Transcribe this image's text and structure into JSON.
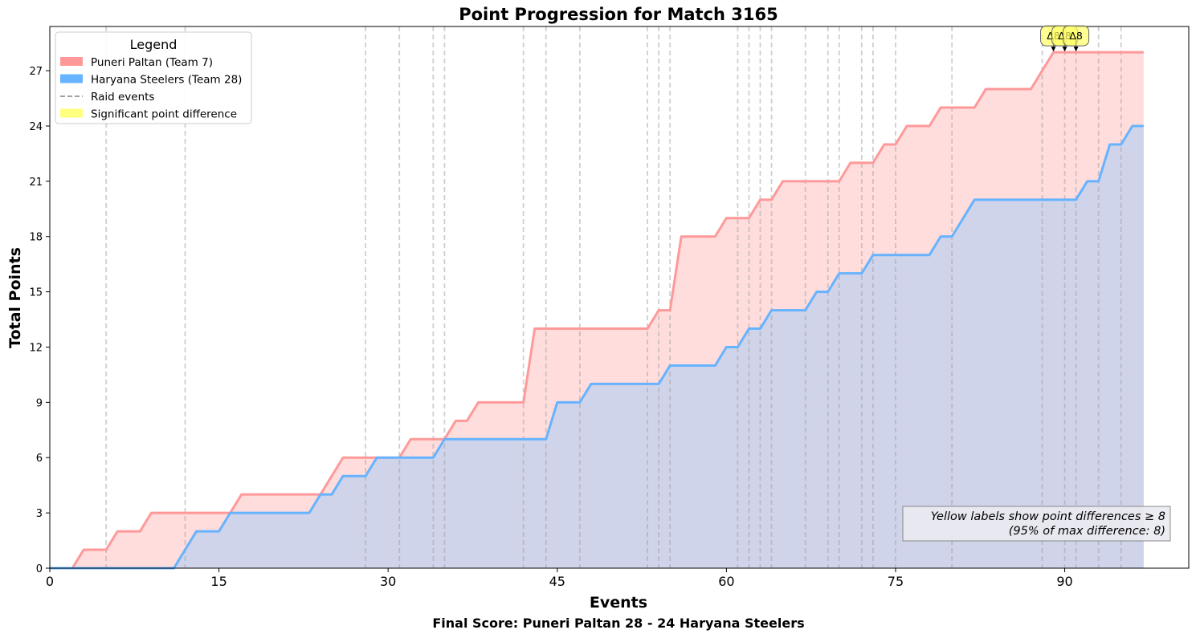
{
  "chart_data": {
    "type": "line",
    "title": "Point Progression for Match 3165",
    "xlabel": "Events",
    "ylabel": "Total Points",
    "footer": "Final Score: Puneri Paltan 28 - 24 Haryana Steelers",
    "xlim": [
      0,
      101
    ],
    "ylim": [
      0,
      29.4
    ],
    "xticks": [
      0,
      15,
      30,
      45,
      60,
      75,
      90
    ],
    "yticks": [
      0,
      3,
      6,
      9,
      12,
      15,
      18,
      21,
      24,
      27
    ],
    "grid": false,
    "legend": {
      "title": "Legend",
      "placement": "top-left",
      "entries": [
        {
          "label": "Puneri Paltan (Team 7)",
          "kind": "patch",
          "color": "#ff9999"
        },
        {
          "label": "Haryana Steelers (Team 28)",
          "kind": "patch",
          "color": "#66b3ff"
        },
        {
          "label": "Raid events",
          "kind": "dashed",
          "color": "#808080"
        },
        {
          "label": "Significant point difference",
          "kind": "patch",
          "color": "#ffff80"
        }
      ]
    },
    "series": [
      {
        "name": "Puneri Paltan (Team 7)",
        "color": "#ff9999",
        "fill": "#ffdddd",
        "steps": [
          [
            0,
            0
          ],
          [
            2,
            0
          ],
          [
            3,
            1
          ],
          [
            5,
            1
          ],
          [
            6,
            2
          ],
          [
            8,
            2
          ],
          [
            9,
            3
          ],
          [
            16,
            3
          ],
          [
            17,
            4
          ],
          [
            24,
            4
          ],
          [
            26,
            6
          ],
          [
            29,
            6
          ],
          [
            30,
            6
          ],
          [
            31,
            6
          ],
          [
            32,
            7
          ],
          [
            35,
            7
          ],
          [
            36,
            8
          ],
          [
            37,
            8
          ],
          [
            38,
            9
          ],
          [
            42,
            9
          ],
          [
            43,
            13
          ],
          [
            53,
            13
          ],
          [
            54,
            14
          ],
          [
            55,
            14
          ],
          [
            56,
            18
          ],
          [
            59,
            18
          ],
          [
            60,
            19
          ],
          [
            62,
            19
          ],
          [
            63,
            20
          ],
          [
            64,
            20
          ],
          [
            65,
            21
          ],
          [
            70,
            21
          ],
          [
            71,
            22
          ],
          [
            73,
            22
          ],
          [
            74,
            23
          ],
          [
            75,
            23
          ],
          [
            76,
            24
          ],
          [
            78,
            24
          ],
          [
            79,
            25
          ],
          [
            82,
            25
          ],
          [
            83,
            26
          ],
          [
            87,
            26
          ],
          [
            89,
            28
          ],
          [
            97,
            28
          ]
        ]
      },
      {
        "name": "Haryana Steelers (Team 28)",
        "color": "#66b3ff",
        "fill": "#d0d4ea",
        "steps": [
          [
            0,
            0
          ],
          [
            11,
            0
          ],
          [
            13,
            2
          ],
          [
            15,
            2
          ],
          [
            16,
            3
          ],
          [
            23,
            3
          ],
          [
            24,
            4
          ],
          [
            25,
            4
          ],
          [
            26,
            5
          ],
          [
            28,
            5
          ],
          [
            29,
            6
          ],
          [
            34,
            6
          ],
          [
            35,
            7
          ],
          [
            44,
            7
          ],
          [
            45,
            9
          ],
          [
            47,
            9
          ],
          [
            48,
            10
          ],
          [
            54,
            10
          ],
          [
            55,
            11
          ],
          [
            59,
            11
          ],
          [
            60,
            12
          ],
          [
            61,
            12
          ],
          [
            62,
            13
          ],
          [
            63,
            13
          ],
          [
            64,
            14
          ],
          [
            67,
            14
          ],
          [
            68,
            15
          ],
          [
            69,
            15
          ],
          [
            70,
            16
          ],
          [
            72,
            16
          ],
          [
            73,
            17
          ],
          [
            78,
            17
          ],
          [
            79,
            18
          ],
          [
            80,
            18
          ],
          [
            82,
            20
          ],
          [
            91,
            20
          ],
          [
            92,
            21
          ],
          [
            93,
            21
          ],
          [
            94,
            23
          ],
          [
            95,
            23
          ],
          [
            96,
            24
          ],
          [
            97,
            24
          ]
        ]
      }
    ],
    "raid_events": [
      5,
      12,
      28,
      31,
      34,
      35,
      42,
      44,
      47,
      53,
      54,
      55,
      61,
      62,
      63,
      64,
      67,
      69,
      70,
      72,
      73,
      75,
      80,
      88,
      90,
      91,
      93,
      95
    ],
    "significant_diff_labels": [
      {
        "x": 89,
        "y": 28,
        "text": "Δ8"
      },
      {
        "x": 90,
        "y": 28,
        "text": "Δ8"
      },
      {
        "x": 91,
        "y": 28,
        "text": "Δ8"
      }
    ],
    "annotation": {
      "line1": "Yellow labels show point differences ≥ 8",
      "line2": "(95% of max difference: 8)"
    }
  }
}
